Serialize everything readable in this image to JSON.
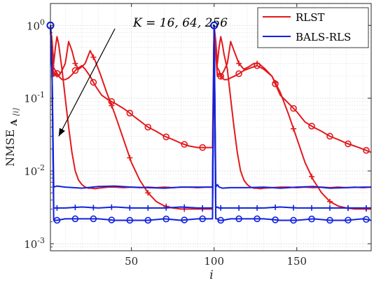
{
  "chart_data": {
    "type": "line",
    "xlabel": "i",
    "ylabel_main": "NMSE",
    "ylabel_sub": "A",
    "ylabel_subsub": "[i]",
    "xlim": [
      1,
      195
    ],
    "ylim": [
      0.0008,
      2.0
    ],
    "yscale": "log",
    "grid": true,
    "legend_position": "top-right",
    "xticks": [
      50,
      100,
      150
    ],
    "xtick_labels": [
      "50",
      "100",
      "150"
    ],
    "yticks": [
      0.001,
      0.01,
      0.1,
      1
    ],
    "ytick_labels": [
      [
        "10",
        "-3"
      ],
      [
        "10",
        "-2"
      ],
      [
        "10",
        "-1"
      ],
      [
        "10",
        "0"
      ]
    ],
    "annotation": {
      "text": "K = 16, 64, 256",
      "arrow_from": [
        40,
        0.9
      ],
      "arrow_to": [
        6,
        0.03
      ]
    },
    "colors": {
      "RLST": "#e3191c",
      "BALS-RLS": "#1122dd"
    },
    "legend": [
      "RLST",
      "BALS-RLS"
    ],
    "series": [
      {
        "name": "RLST",
        "marker": "none",
        "x": [
          1,
          2,
          3,
          4,
          5,
          6,
          8,
          10,
          12,
          14,
          16,
          18,
          20,
          22,
          24,
          26,
          28,
          30,
          33,
          36,
          40,
          45,
          50,
          55,
          60,
          65,
          70,
          75,
          80,
          85,
          90,
          95,
          99,
          100,
          101,
          102,
          103,
          104,
          105,
          106,
          108,
          110,
          112,
          114,
          116,
          118,
          120,
          122,
          124,
          126,
          128,
          130,
          135,
          140,
          145,
          150,
          155,
          160,
          165,
          170,
          175,
          180,
          185,
          190,
          195
        ],
        "y": [
          1,
          0.6,
          0.3,
          0.5,
          0.7,
          0.55,
          0.25,
          0.1,
          0.04,
          0.018,
          0.01,
          0.0075,
          0.0065,
          0.006,
          0.0058,
          0.0058,
          0.0057,
          0.0058,
          0.0059,
          0.006,
          0.006,
          0.0059,
          0.006,
          0.0059,
          0.006,
          0.0059,
          0.006,
          0.0059,
          0.006,
          0.006,
          0.0059,
          0.006,
          0.006,
          1,
          0.6,
          0.3,
          0.5,
          0.7,
          0.55,
          0.4,
          0.25,
          0.1,
          0.04,
          0.018,
          0.01,
          0.0075,
          0.0065,
          0.006,
          0.0058,
          0.0058,
          0.0057,
          0.0058,
          0.0059,
          0.006,
          0.006,
          0.0059,
          0.006,
          0.0059,
          0.006,
          0.0059,
          0.006,
          0.0059,
          0.006,
          0.0059,
          0.006
        ]
      },
      {
        "name": "RLST",
        "marker": "plus",
        "x": [
          1,
          2,
          3,
          4,
          6,
          8,
          10,
          12,
          14,
          16,
          18,
          20,
          22,
          25,
          28,
          31,
          35,
          40,
          45,
          50,
          55,
          60,
          65,
          70,
          75,
          80,
          85,
          90,
          95,
          99,
          100,
          101,
          102,
          103,
          104,
          106,
          108,
          110,
          112,
          115,
          118,
          121,
          124,
          127,
          131,
          135,
          140,
          145,
          150,
          155,
          160,
          165,
          170,
          175,
          180,
          185,
          190,
          195
        ],
        "y": [
          1,
          0.4,
          0.2,
          0.22,
          0.2,
          0.24,
          0.3,
          0.6,
          0.45,
          0.3,
          0.25,
          0.27,
          0.3,
          0.45,
          0.33,
          0.22,
          0.12,
          0.06,
          0.028,
          0.013,
          0.0075,
          0.005,
          0.0038,
          0.0033,
          0.0031,
          0.003,
          0.003,
          0.003,
          0.003,
          0.003,
          1,
          0.4,
          0.2,
          0.22,
          0.2,
          0.24,
          0.3,
          0.6,
          0.45,
          0.3,
          0.25,
          0.27,
          0.3,
          0.3,
          0.25,
          0.2,
          0.12,
          0.06,
          0.028,
          0.013,
          0.0075,
          0.005,
          0.0038,
          0.0033,
          0.0031,
          0.003,
          0.003,
          0.003
        ]
      },
      {
        "name": "RLST",
        "marker": "circle",
        "x": [
          1,
          2,
          3,
          4,
          6,
          8,
          10,
          12,
          14,
          16,
          18,
          20,
          22,
          25,
          28,
          32,
          36,
          40,
          44,
          48,
          52,
          56,
          60,
          65,
          70,
          75,
          80,
          85,
          90,
          95,
          99,
          100,
          101,
          102,
          103,
          104,
          106,
          108,
          110,
          114,
          118,
          122,
          126,
          130,
          135,
          140,
          145,
          150,
          155,
          160,
          165,
          170,
          175,
          180,
          185,
          190,
          195
        ],
        "y": [
          1,
          0.5,
          0.26,
          0.24,
          0.2,
          0.18,
          0.18,
          0.19,
          0.21,
          0.24,
          0.26,
          0.28,
          0.25,
          0.2,
          0.15,
          0.11,
          0.095,
          0.085,
          0.075,
          0.065,
          0.055,
          0.047,
          0.04,
          0.035,
          0.03,
          0.027,
          0.024,
          0.022,
          0.021,
          0.021,
          0.021,
          1,
          0.5,
          0.26,
          0.24,
          0.2,
          0.18,
          0.18,
          0.19,
          0.21,
          0.24,
          0.26,
          0.28,
          0.25,
          0.2,
          0.11,
          0.085,
          0.065,
          0.047,
          0.04,
          0.035,
          0.03,
          0.027,
          0.024,
          0.022,
          0.02,
          0.018
        ]
      },
      {
        "name": "BALS-RLS",
        "marker": "none",
        "x": [
          1,
          2,
          3,
          5,
          10,
          20,
          30,
          40,
          50,
          60,
          70,
          80,
          90,
          99,
          100,
          101,
          102,
          103,
          105,
          110,
          120,
          130,
          140,
          150,
          160,
          170,
          180,
          190,
          195
        ],
        "y": [
          1,
          0.2,
          0.006,
          0.0062,
          0.006,
          0.0058,
          0.0061,
          0.0062,
          0.006,
          0.0059,
          0.0058,
          0.006,
          0.006,
          0.006,
          1,
          0.006,
          0.0065,
          0.006,
          0.0058,
          0.0059,
          0.0059,
          0.006,
          0.0058,
          0.006,
          0.0061,
          0.0058,
          0.0059,
          0.006,
          0.006
        ]
      },
      {
        "name": "BALS-RLS",
        "marker": "plus",
        "x": [
          1,
          2,
          3,
          5,
          10,
          20,
          30,
          40,
          50,
          60,
          70,
          80,
          90,
          99,
          100,
          101,
          102,
          103,
          105,
          110,
          120,
          130,
          140,
          150,
          160,
          170,
          180,
          190,
          195
        ],
        "y": [
          1,
          0.2,
          0.0031,
          0.0031,
          0.0031,
          0.0032,
          0.0031,
          0.0032,
          0.0031,
          0.0031,
          0.0031,
          0.0032,
          0.0031,
          0.0031,
          1,
          0.0031,
          0.0032,
          0.0031,
          0.0031,
          0.0031,
          0.0031,
          0.0031,
          0.0032,
          0.0031,
          0.0031,
          0.0031,
          0.0031,
          0.0031,
          0.0031
        ]
      },
      {
        "name": "BALS-RLS",
        "marker": "circle",
        "x": [
          1,
          2,
          3,
          5,
          10,
          20,
          30,
          40,
          50,
          60,
          70,
          80,
          90,
          99,
          100,
          101,
          102,
          103,
          105,
          110,
          120,
          130,
          140,
          150,
          160,
          170,
          180,
          190,
          195
        ],
        "y": [
          1,
          0.2,
          0.0021,
          0.0021,
          0.0022,
          0.0022,
          0.0022,
          0.0021,
          0.0021,
          0.0021,
          0.0022,
          0.0021,
          0.0022,
          0.0022,
          1,
          0.0022,
          0.0022,
          0.0021,
          0.0021,
          0.0022,
          0.0022,
          0.0022,
          0.0021,
          0.0021,
          0.0022,
          0.0021,
          0.0021,
          0.0022,
          0.0021
        ]
      }
    ]
  }
}
